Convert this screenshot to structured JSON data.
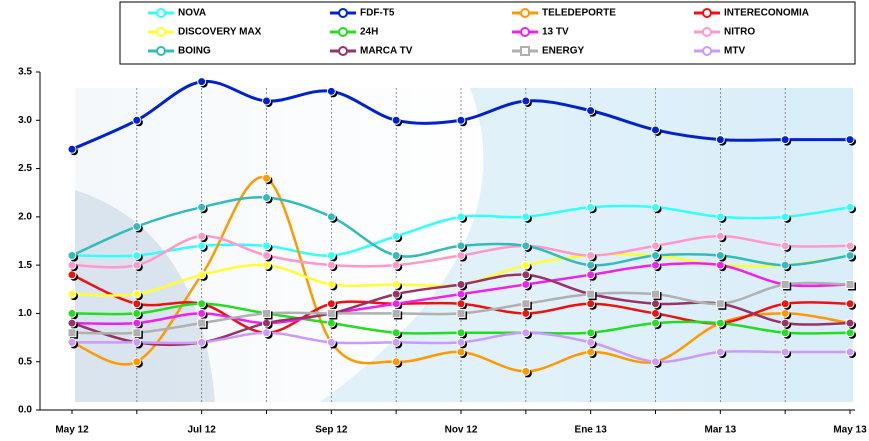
{
  "chart_data": {
    "type": "line",
    "categories": [
      "May 12",
      null,
      "Jul 12",
      null,
      "Sep 12",
      null,
      "Nov 12",
      null,
      "Ene 13",
      null,
      "Mar 13",
      null,
      "May 13"
    ],
    "ylim": [
      0,
      3.5
    ],
    "yticks": [
      {
        "value": 0,
        "label": "0.0"
      },
      0.5,
      {
        "value": 1,
        "label": "1.0"
      },
      1.5,
      {
        "value": 2,
        "label": "2.0"
      },
      2.5,
      {
        "value": 3,
        "label": "3.0"
      },
      3.5
    ],
    "series": [
      {
        "name": "NOVA",
        "color": "#33ffff",
        "values": [
          1.6,
          1.6,
          1.7,
          1.7,
          1.6,
          1.8,
          2.0,
          2.0,
          2.1,
          2.1,
          2.0,
          2.0,
          2.1
        ]
      },
      {
        "name": "FDF-T5",
        "color": "#0022cc",
        "values": [
          2.7,
          3.0,
          3.4,
          3.2,
          3.3,
          3.0,
          3.0,
          3.2,
          3.1,
          2.9,
          2.8,
          2.8,
          2.8
        ]
      },
      {
        "name": "TELEDEPORTE",
        "color": "#ff9900",
        "values": [
          0.7,
          0.5,
          1.4,
          2.4,
          0.7,
          0.5,
          0.6,
          0.4,
          0.6,
          0.5,
          0.9,
          1.0,
          0.9
        ]
      },
      {
        "name": "INTERECONOMIA",
        "color": "#ee1111",
        "values": [
          1.4,
          1.1,
          1.1,
          0.8,
          1.1,
          1.1,
          1.1,
          1.0,
          1.1,
          1.0,
          0.9,
          1.1,
          1.1
        ]
      },
      {
        "name": "DISCOVERY MAX",
        "color": "#ffff33",
        "values": [
          1.2,
          1.2,
          1.4,
          1.5,
          1.3,
          1.3,
          1.3,
          1.5,
          1.6,
          1.6,
          1.5,
          1.5,
          1.6
        ]
      },
      {
        "name": "24H",
        "color": "#22dd22",
        "values": [
          1.0,
          1.0,
          1.1,
          1.0,
          0.9,
          0.8,
          0.8,
          0.8,
          0.8,
          0.9,
          0.9,
          0.8,
          0.8
        ]
      },
      {
        "name": "13 TV",
        "color": "#ee22ee",
        "values": [
          0.9,
          0.9,
          1.0,
          0.9,
          1.0,
          1.1,
          1.2,
          1.3,
          1.4,
          1.5,
          1.5,
          1.3,
          1.3
        ]
      },
      {
        "name": "NITRO",
        "color": "#ff99cc",
        "values": [
          1.5,
          1.5,
          1.8,
          1.6,
          1.5,
          1.5,
          1.6,
          1.7,
          1.6,
          1.7,
          1.8,
          1.7,
          1.7
        ]
      },
      {
        "name": "BOING",
        "color": "#33bbbb",
        "values": [
          1.6,
          1.9,
          2.1,
          2.2,
          2.0,
          1.6,
          1.7,
          1.7,
          1.5,
          1.6,
          1.6,
          1.5,
          1.6
        ]
      },
      {
        "name": "MARCA TV",
        "color": "#993366",
        "values": [
          0.9,
          0.7,
          0.7,
          0.9,
          1.0,
          1.2,
          1.3,
          1.4,
          1.2,
          1.1,
          1.1,
          0.9,
          0.9
        ]
      },
      {
        "name": "ENERGY",
        "color": "#b0b0b0",
        "marker": "square",
        "values": [
          0.8,
          0.8,
          0.9,
          1.0,
          1.0,
          1.0,
          1.0,
          1.1,
          1.2,
          1.2,
          1.1,
          1.3,
          1.3
        ]
      },
      {
        "name": "MTV",
        "color": "#cc99ff",
        "values": [
          0.7,
          0.7,
          0.7,
          0.8,
          0.7,
          0.7,
          0.7,
          0.8,
          0.7,
          0.5,
          0.6,
          0.6,
          0.6
        ]
      }
    ]
  }
}
